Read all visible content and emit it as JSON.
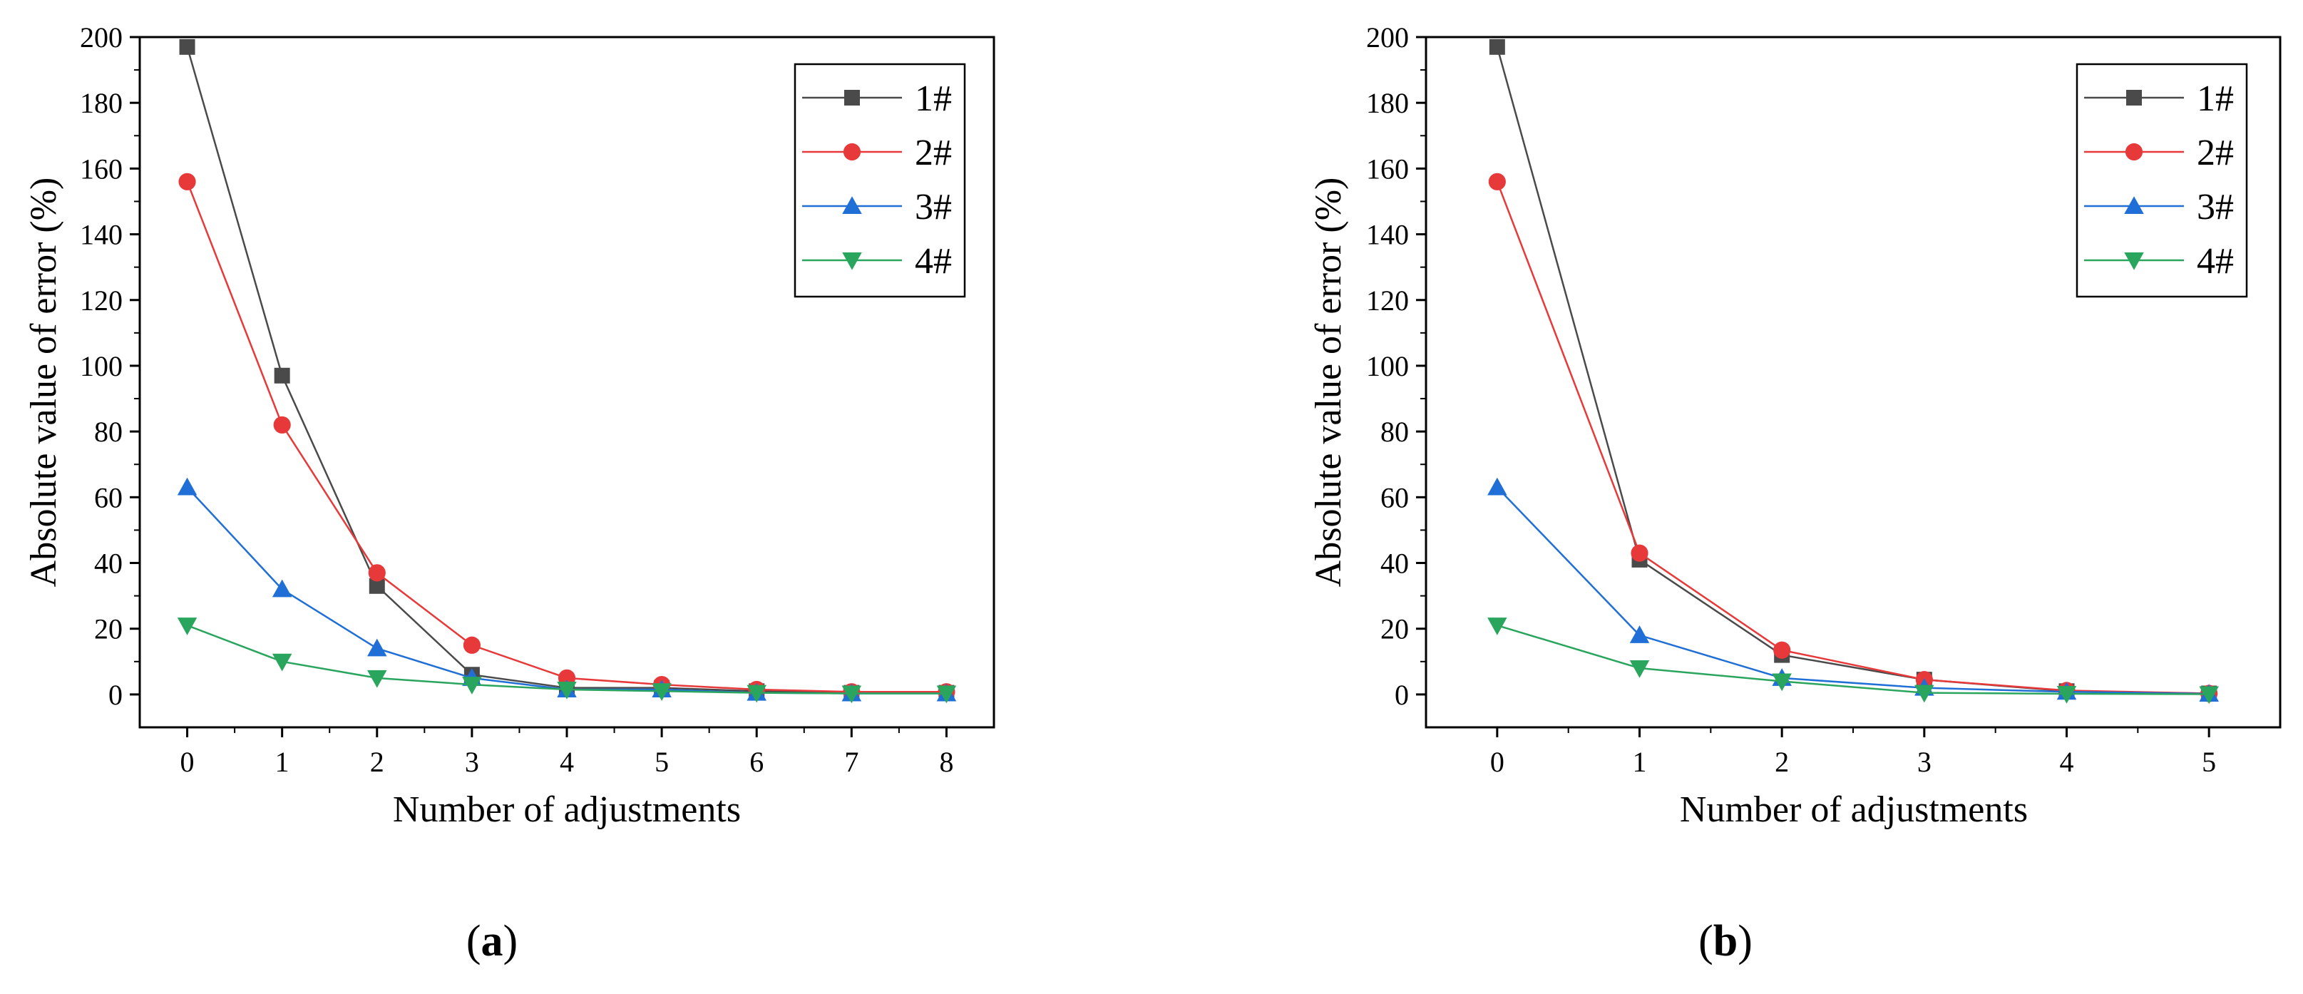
{
  "chart_data": [
    {
      "type": "line",
      "panel_label": "a",
      "xlabel": "Number of adjustments",
      "ylabel": "Absolute value of error (%)",
      "xlim": [
        -0.5,
        8.5
      ],
      "ylim": [
        -10,
        200
      ],
      "xticks": [
        0,
        1,
        2,
        3,
        4,
        5,
        6,
        7,
        8
      ],
      "yticks": [
        0,
        20,
        40,
        60,
        80,
        100,
        120,
        140,
        160,
        180,
        200
      ],
      "legend_position": "top-right",
      "x": [
        0,
        1,
        2,
        3,
        4,
        5,
        6,
        7,
        8
      ],
      "series": [
        {
          "name": "1#",
          "marker": "square",
          "color": "#4a4a4a",
          "values": [
            197,
            97,
            33,
            6,
            2,
            2,
            1,
            0.5,
            0.5
          ]
        },
        {
          "name": "2#",
          "marker": "circle",
          "color": "#e8393a",
          "values": [
            156,
            82,
            37,
            15,
            5,
            3,
            1.5,
            0.8,
            0.8
          ]
        },
        {
          "name": "3#",
          "marker": "triangle-up",
          "color": "#1f6fd6",
          "values": [
            63,
            32,
            14,
            5,
            1.5,
            1.5,
            0.5,
            0.3,
            0.3
          ]
        },
        {
          "name": "4#",
          "marker": "triangle-down",
          "color": "#2aa55e",
          "values": [
            21,
            10,
            5,
            3,
            1.5,
            1,
            0.5,
            0.3,
            0.3
          ]
        }
      ]
    },
    {
      "type": "line",
      "panel_label": "b",
      "xlabel": "Number of adjustments",
      "ylabel": "Absolute value of error (%)",
      "xlim": [
        -0.5,
        5.5
      ],
      "ylim": [
        -10,
        200
      ],
      "xticks": [
        0,
        1,
        2,
        3,
        4,
        5
      ],
      "yticks": [
        0,
        20,
        40,
        60,
        80,
        100,
        120,
        140,
        160,
        180,
        200
      ],
      "legend_position": "top-right",
      "x": [
        0,
        1,
        2,
        3,
        4,
        5
      ],
      "series": [
        {
          "name": "1#",
          "marker": "square",
          "color": "#4a4a4a",
          "values": [
            197,
            41,
            12,
            4.5,
            1,
            0.3
          ]
        },
        {
          "name": "2#",
          "marker": "circle",
          "color": "#e8393a",
          "values": [
            156,
            43,
            13.5,
            4.5,
            1.2,
            0.3
          ]
        },
        {
          "name": "3#",
          "marker": "triangle-up",
          "color": "#1f6fd6",
          "values": [
            63,
            18,
            5,
            2,
            0.8,
            0.2
          ]
        },
        {
          "name": "4#",
          "marker": "triangle-down",
          "color": "#2aa55e",
          "values": [
            21,
            8,
            4,
            0.5,
            0.2,
            0.1
          ]
        }
      ]
    }
  ]
}
